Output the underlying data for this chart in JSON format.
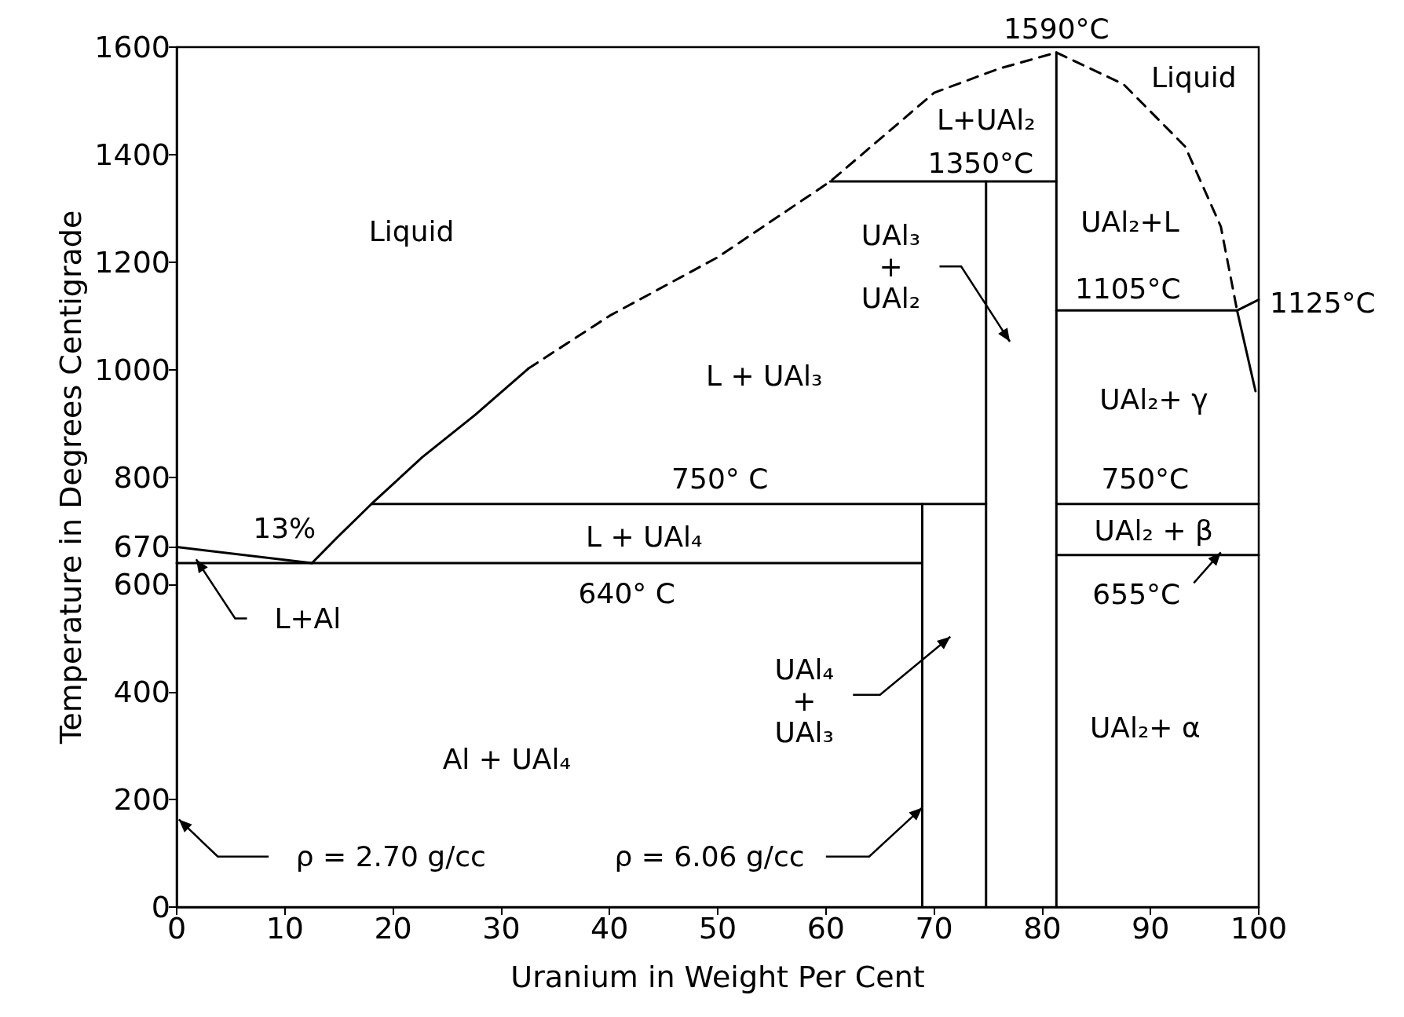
{
  "chart_data": {
    "type": "line",
    "xlabel": "Uranium in Weight Per Cent",
    "ylabel": "Temperature in Degrees Centigrade",
    "xlim": [
      0,
      100
    ],
    "xticks": [
      0,
      10,
      20,
      30,
      40,
      50,
      60,
      70,
      80,
      90,
      100
    ],
    "ylim": [
      0,
      1600
    ],
    "yticks": [
      0,
      200,
      400,
      600,
      670,
      800,
      1000,
      1200,
      1400,
      1600
    ],
    "grid": false,
    "marker": "none",
    "series": [
      {
        "color": "#000000",
        "line_style": "solid",
        "x": [
          0,
          12.5
        ],
        "values": [
          670,
          640
        ]
      },
      {
        "color": "#000000",
        "line_style": "solid",
        "x": [
          12.5,
          14.9,
          18,
          22.7,
          27.6,
          32.5
        ],
        "values": [
          640,
          689,
          750,
          837,
          916,
          1002
        ]
      },
      {
        "color": "#000000",
        "line_style": "dashed",
        "x": [
          32.5,
          40,
          50,
          60.4,
          70,
          76,
          81.3
        ],
        "values": [
          1002,
          1100,
          1209,
          1350,
          1515,
          1560,
          1590
        ]
      },
      {
        "color": "#000000",
        "line_style": "dashed",
        "x": [
          81.3,
          87.5,
          93.2,
          96.5,
          98
        ],
        "values": [
          1590,
          1531,
          1415,
          1266,
          1110
        ]
      },
      {
        "color": "#000000",
        "line_style": "solid",
        "x": [
          60.4,
          81.3
        ],
        "values": [
          1350,
          1350
        ]
      },
      {
        "color": "#000000",
        "line_style": "solid",
        "x": [
          74.8,
          74.8
        ],
        "values": [
          0,
          1350
        ]
      },
      {
        "color": "#000000",
        "line_style": "solid",
        "x": [
          68.9,
          68.9
        ],
        "values": [
          0,
          750
        ]
      },
      {
        "color": "#000000",
        "line_style": "solid",
        "x": [
          18,
          74.8
        ],
        "values": [
          750,
          750
        ]
      },
      {
        "color": "#000000",
        "line_style": "solid",
        "x": [
          0,
          68.9
        ],
        "values": [
          640,
          640
        ]
      },
      {
        "color": "#000000",
        "line_style": "solid",
        "x": [
          81.3,
          81.3
        ],
        "values": [
          0,
          1590
        ]
      },
      {
        "color": "#000000",
        "line_style": "solid",
        "x": [
          81.3,
          100
        ],
        "values": [
          750,
          750
        ]
      },
      {
        "color": "#000000",
        "line_style": "solid",
        "x": [
          81.3,
          100
        ],
        "values": [
          655,
          655
        ]
      },
      {
        "color": "#000000",
        "line_style": "solid",
        "x": [
          81.3,
          98
        ],
        "values": [
          1110,
          1110
        ]
      },
      {
        "color": "#000000",
        "line_style": "solid",
        "x": [
          98,
          100
        ],
        "values": [
          1110,
          1130
        ]
      },
      {
        "color": "#000000",
        "line_style": "solid",
        "x": [
          98,
          99.7
        ],
        "values": [
          1110,
          960
        ]
      }
    ],
    "annotations": [
      {
        "text": "1590°C",
        "x": 81.3,
        "y": 1590
      },
      "Liquid",
      "L+UAl₂",
      {
        "text": "1350°C",
        "x": 74.3,
        "y": 1350
      },
      "Liquid",
      "UAl₃\n+\nUAl₂",
      "UAl₂+L",
      {
        "text": "1105°C",
        "x": 87.9,
        "y": 1110
      },
      {
        "text": "1125°C",
        "x": 100,
        "y": 1125
      },
      "L + UAl₃",
      "UAl₂+ γ",
      {
        "text": "750° C",
        "x": 50.2,
        "y": 750
      },
      {
        "text": "750°C",
        "x": 89.5,
        "y": 750
      },
      {
        "text": "13%",
        "x": 12.5,
        "y": 640
      },
      "L + UAl₄",
      "UAl₂ + β",
      {
        "text": "640° C",
        "x": 41.6,
        "y": 640
      },
      {
        "text": "655°C",
        "x": 88.7,
        "y": 655
      },
      {
        "text": "L+Al",
        "x": 1.8,
        "y": 647
      },
      "UAl₄\n+\nUAl₃",
      "UAl₂+ α",
      "Al + UAl₄",
      "ρ = 2.70 g/cc",
      {
        "text": "ρ = 6.06 g/cc",
        "x": 68.9,
        "y": 185
      }
    ]
  }
}
